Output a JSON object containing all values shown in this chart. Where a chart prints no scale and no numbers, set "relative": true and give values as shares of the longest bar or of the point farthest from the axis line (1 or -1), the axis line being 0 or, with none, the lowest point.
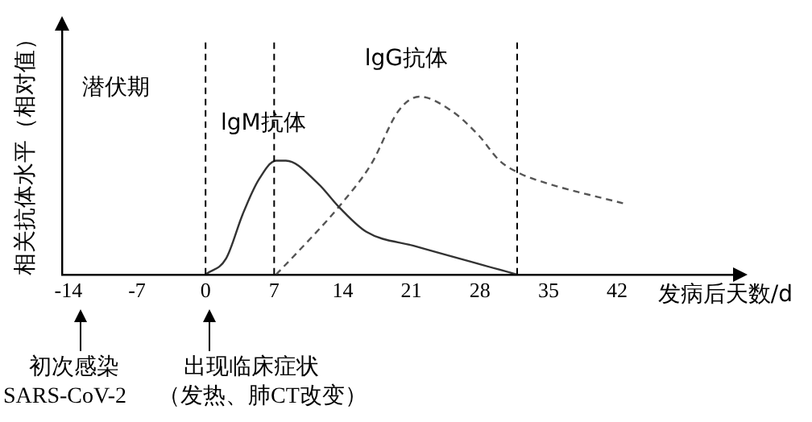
{
  "chart_data": {
    "type": "line",
    "relative": true,
    "ylabel": "相关抗体水平（相对值）",
    "xlabel": "发病后天数/d",
    "xlim": [
      -14.6,
      54
    ],
    "xticks": [
      -14,
      -7,
      0,
      7,
      14,
      21,
      28,
      35,
      42
    ],
    "grid": false,
    "legend": false,
    "marker": "none",
    "series": [
      {
        "name": "lgM抗体",
        "color": "#333333",
        "line_style": "solid",
        "x": [
          0,
          2.1,
          3.8,
          5.4,
          7.2,
          8.2,
          11.5,
          13.6,
          16.4,
          21.3,
          31.8
        ],
        "values": [
          0,
          0.09,
          0.34,
          0.53,
          0.64,
          0.64,
          0.51,
          0.38,
          0.24,
          0.16,
          0
        ]
      },
      {
        "name": "lgG抗体",
        "color": "#555555",
        "line_style": "dashed",
        "x": [
          7.2,
          9.3,
          13.6,
          16.9,
          19.7,
          21.8,
          25.1,
          27.9,
          30,
          32,
          34.4,
          42.6
        ],
        "values": [
          0,
          0.12,
          0.38,
          0.62,
          0.92,
          1,
          0.92,
          0.78,
          0.64,
          0.57,
          0.52,
          0.4
        ]
      }
    ],
    "ref_lines": [
      {
        "axis": "x",
        "value": 0,
        "color": "#000000",
        "line_style": "dashed"
      },
      {
        "axis": "x",
        "value": 7,
        "color": "#000000",
        "line_style": "dashed"
      },
      {
        "axis": "x",
        "value": 31.8,
        "color": "#000000",
        "line_style": "dashed"
      }
    ],
    "annotations": [
      "潜伏期",
      "初次感染",
      "SARS-CoV-2",
      "出现临床症状",
      "（发热、肺CT改变）"
    ]
  }
}
